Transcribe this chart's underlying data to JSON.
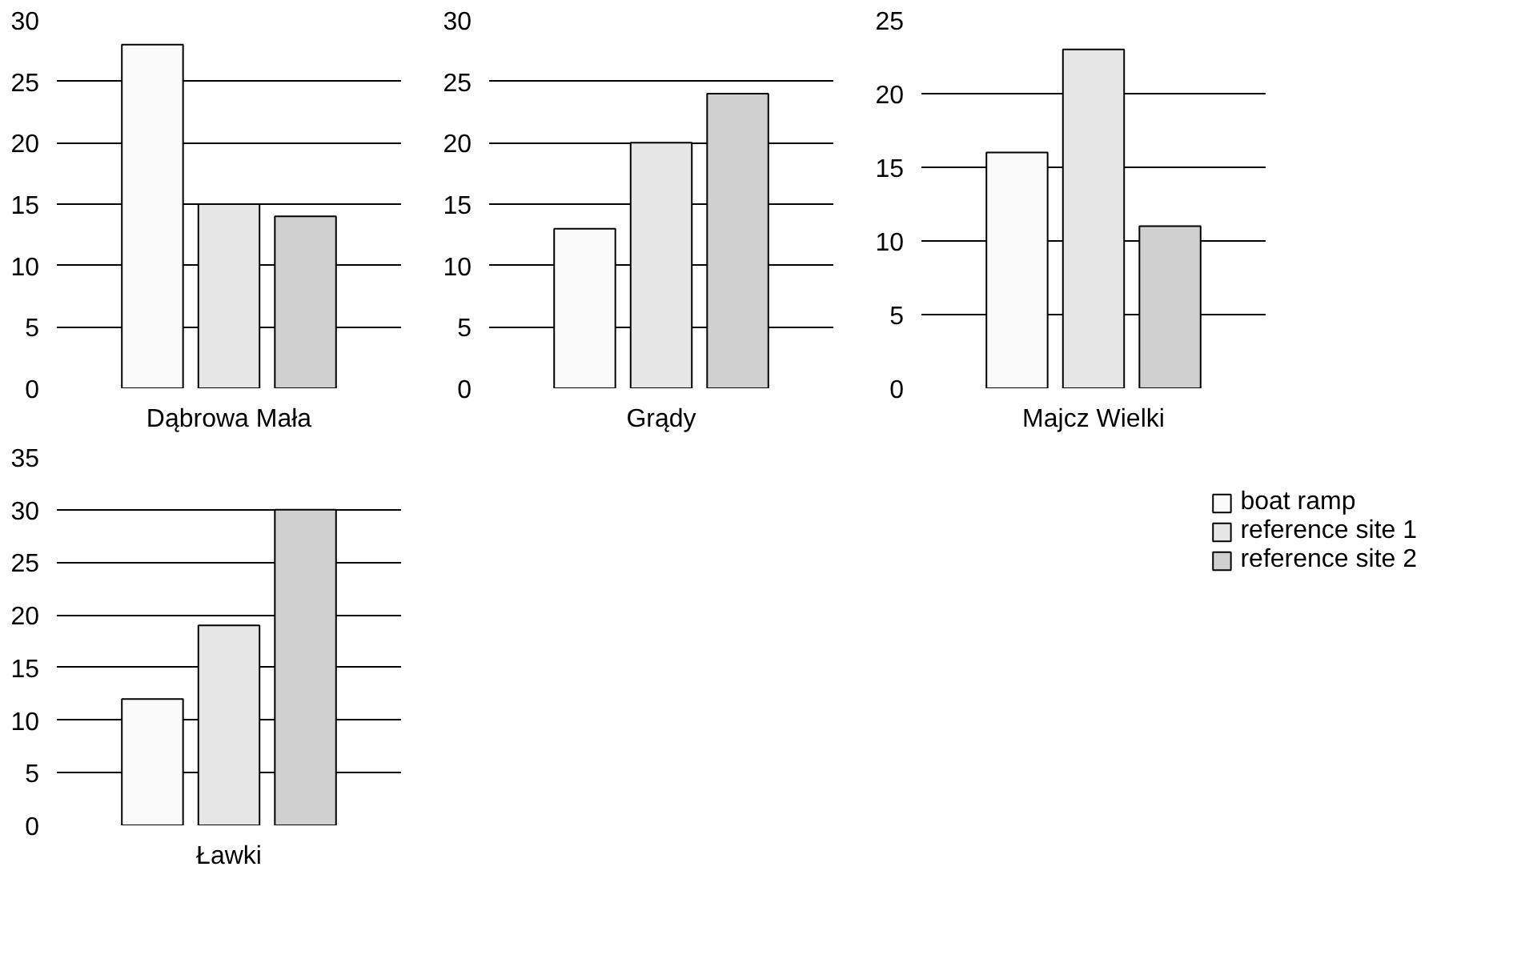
{
  "chart_data": [
    {
      "type": "bar",
      "categories": [
        "Dąbrowa Mała"
      ],
      "ylim": [
        0,
        30
      ],
      "yticks": [
        0,
        5,
        10,
        15,
        20,
        25,
        30
      ],
      "grid": "y",
      "series": [
        {
          "color": "#fafafa",
          "values": [
            28
          ]
        },
        {
          "color": "#e6e6e6",
          "values": [
            15
          ]
        },
        {
          "color": "#d0d0d0",
          "values": [
            14
          ]
        }
      ]
    },
    {
      "type": "bar",
      "categories": [
        "Grądy"
      ],
      "ylim": [
        0,
        30
      ],
      "yticks": [
        0,
        5,
        10,
        15,
        20,
        25,
        30
      ],
      "grid": "y",
      "series": [
        {
          "color": "#fafafa",
          "values": [
            13
          ]
        },
        {
          "color": "#e6e6e6",
          "values": [
            20
          ]
        },
        {
          "color": "#d0d0d0",
          "values": [
            24
          ]
        }
      ]
    },
    {
      "type": "bar",
      "categories": [
        "Majcz Wielki"
      ],
      "ylim": [
        0,
        25
      ],
      "yticks": [
        0,
        5,
        10,
        15,
        20,
        25
      ],
      "grid": "y",
      "series": [
        {
          "color": "#fafafa",
          "values": [
            16
          ]
        },
        {
          "color": "#e6e6e6",
          "values": [
            23
          ]
        },
        {
          "color": "#d0d0d0",
          "values": [
            11
          ]
        }
      ]
    },
    {
      "type": "bar",
      "categories": [
        "Ławki"
      ],
      "ylim": [
        0,
        35
      ],
      "yticks": [
        0,
        5,
        10,
        15,
        20,
        25,
        30,
        35
      ],
      "grid": "y",
      "legend": "right",
      "series": [
        {
          "name": "boat ramp",
          "color": "#fafafa",
          "values": [
            12
          ]
        },
        {
          "name": "reference site 1",
          "color": "#e6e6e6",
          "values": [
            19
          ]
        },
        {
          "name": "reference site 2",
          "color": "#d0d0d0",
          "values": [
            30
          ]
        }
      ]
    }
  ]
}
